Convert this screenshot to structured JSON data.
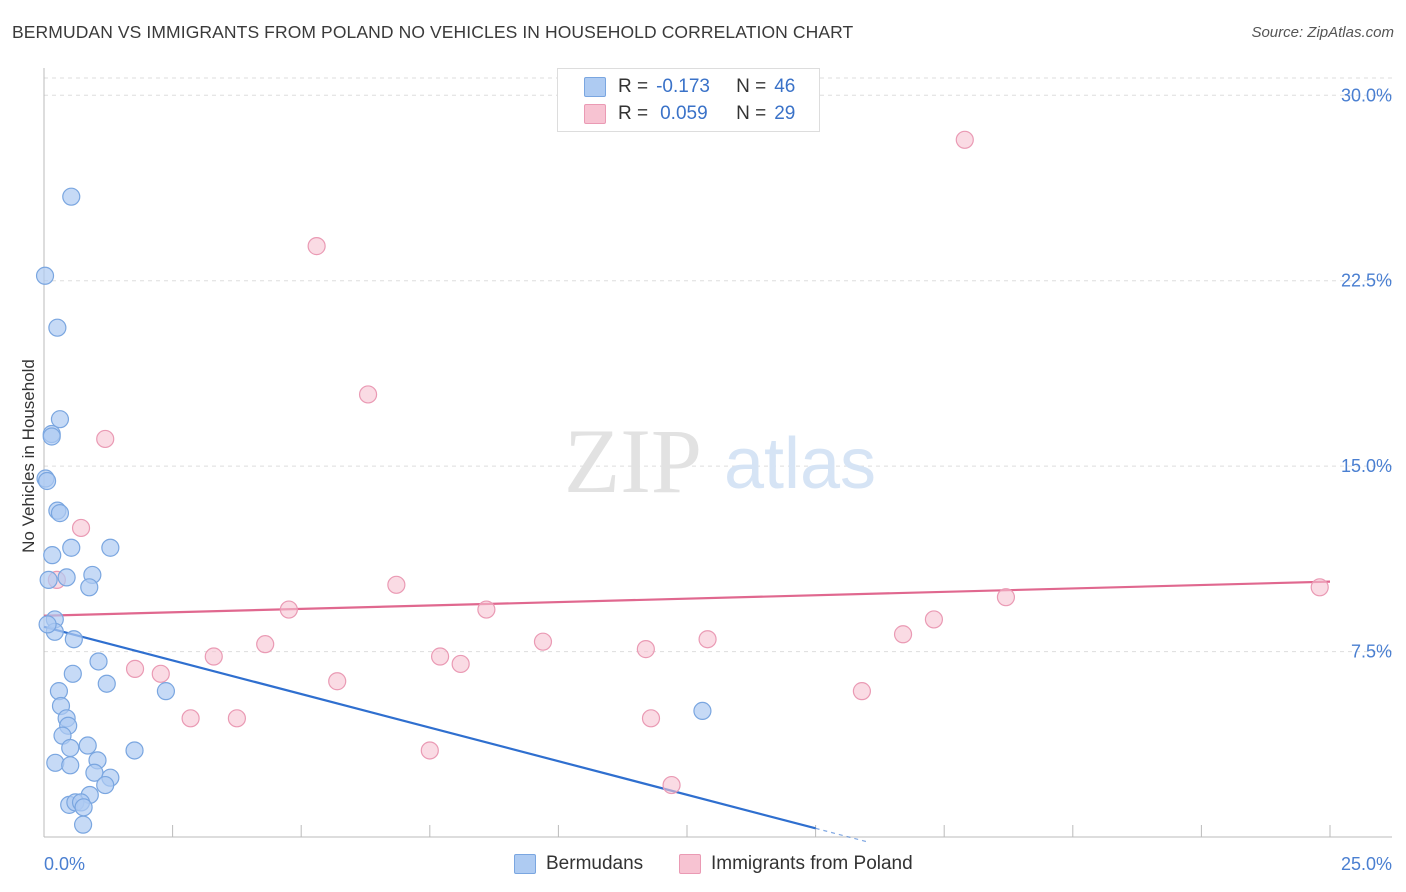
{
  "title": "BERMUDAN VS IMMIGRANTS FROM POLAND NO VEHICLES IN HOUSEHOLD CORRELATION CHART",
  "source": "Source: ZipAtlas.com",
  "watermark": {
    "zip": "ZIP",
    "atlas": "atlas"
  },
  "legend": {
    "rows": [
      {
        "r_label": "R =",
        "r_value": "-0.173",
        "n_label": "N =",
        "n_value": "46"
      },
      {
        "r_label": "R =",
        "r_value": "0.059",
        "n_label": "N =",
        "n_value": "29"
      }
    ]
  },
  "bottom_legend": [
    "Bermudans",
    "Immigrants from Poland"
  ],
  "colors": {
    "bermudans_fill": "#aecbf2",
    "bermudans_stroke": "#7aa6e0",
    "bermudans_line": "#2f6fcf",
    "poland_fill": "#f7c3d2",
    "poland_stroke": "#ea9ab4",
    "poland_line": "#e0688f",
    "tick_text": "#4a7fd1",
    "grid": "#dddddd"
  },
  "chart_data": {
    "type": "scatter",
    "title": "BERMUDAN VS IMMIGRANTS FROM POLAND NO VEHICLES IN HOUSEHOLD CORRELATION CHART",
    "xlabel": "",
    "ylabel": "No Vehicles in Household",
    "xlim": [
      0,
      25
    ],
    "ylim": [
      0,
      30.7
    ],
    "x_ticks_labeled": [
      "0.0%",
      "25.0%"
    ],
    "y_ticks": [
      7.5,
      15.0,
      22.5,
      30.0
    ],
    "y_tick_labels": [
      "7.5%",
      "15.0%",
      "22.5%",
      "30.0%"
    ],
    "grid": true,
    "series": [
      {
        "name": "Bermudans",
        "stats": {
          "R": -0.173,
          "N": 46
        },
        "points": [
          [
            0.53,
            25.9
          ],
          [
            0.02,
            22.7
          ],
          [
            0.26,
            20.6
          ],
          [
            0.31,
            16.9
          ],
          [
            0.15,
            16.3
          ],
          [
            0.03,
            14.5
          ],
          [
            0.26,
            13.2
          ],
          [
            0.31,
            13.1
          ],
          [
            0.16,
            11.4
          ],
          [
            0.53,
            11.7
          ],
          [
            1.29,
            11.7
          ],
          [
            0.44,
            10.5
          ],
          [
            0.94,
            10.6
          ],
          [
            0.88,
            10.1
          ],
          [
            0.09,
            10.4
          ],
          [
            0.21,
            8.8
          ],
          [
            0.21,
            8.3
          ],
          [
            0.58,
            8.0
          ],
          [
            1.06,
            7.1
          ],
          [
            0.56,
            6.6
          ],
          [
            1.22,
            6.2
          ],
          [
            0.29,
            5.9
          ],
          [
            0.33,
            5.3
          ],
          [
            2.37,
            5.9
          ],
          [
            0.44,
            4.8
          ],
          [
            0.47,
            4.5
          ],
          [
            0.36,
            4.1
          ],
          [
            0.51,
            3.6
          ],
          [
            0.85,
            3.7
          ],
          [
            1.76,
            3.5
          ],
          [
            0.22,
            3.0
          ],
          [
            0.51,
            2.9
          ],
          [
            1.04,
            3.1
          ],
          [
            0.98,
            2.6
          ],
          [
            1.29,
            2.4
          ],
          [
            1.19,
            2.1
          ],
          [
            0.89,
            1.7
          ],
          [
            0.49,
            1.3
          ],
          [
            0.61,
            1.4
          ],
          [
            0.72,
            1.4
          ],
          [
            0.77,
            1.2
          ],
          [
            0.76,
            0.5
          ],
          [
            12.8,
            5.1
          ],
          [
            0.07,
            8.6
          ],
          [
            0.15,
            16.2
          ],
          [
            0.06,
            14.4
          ]
        ],
        "trend": {
          "x": [
            0,
            15.0
          ],
          "y": [
            8.5,
            0.35
          ]
        }
      },
      {
        "name": "Immigrants from Poland",
        "stats": {
          "R": 0.059,
          "N": 29
        },
        "points": [
          [
            17.9,
            28.2
          ],
          [
            5.3,
            23.9
          ],
          [
            6.3,
            17.9
          ],
          [
            1.19,
            16.1
          ],
          [
            0.72,
            12.5
          ],
          [
            0.25,
            10.4
          ],
          [
            6.85,
            10.2
          ],
          [
            18.7,
            9.7
          ],
          [
            24.8,
            10.1
          ],
          [
            4.76,
            9.2
          ],
          [
            8.6,
            9.2
          ],
          [
            17.3,
            8.8
          ],
          [
            16.7,
            8.2
          ],
          [
            9.7,
            7.9
          ],
          [
            4.3,
            7.8
          ],
          [
            12.9,
            8.0
          ],
          [
            11.7,
            7.6
          ],
          [
            3.3,
            7.3
          ],
          [
            7.7,
            7.3
          ],
          [
            8.1,
            7.0
          ],
          [
            1.77,
            6.8
          ],
          [
            2.27,
            6.6
          ],
          [
            5.7,
            6.3
          ],
          [
            15.9,
            5.9
          ],
          [
            2.85,
            4.8
          ],
          [
            3.75,
            4.8
          ],
          [
            11.8,
            4.8
          ],
          [
            7.5,
            3.5
          ],
          [
            12.2,
            2.1
          ]
        ],
        "trend": {
          "x": [
            0,
            25.0
          ],
          "y": [
            8.95,
            10.33
          ]
        }
      }
    ]
  }
}
